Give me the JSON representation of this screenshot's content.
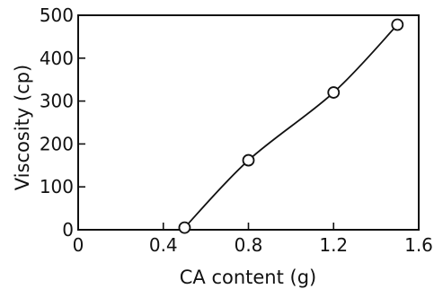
{
  "chart_data": {
    "type": "line",
    "title": "",
    "xlabel": "CA content (g)",
    "ylabel": "Viscosity (cp)",
    "xlim": [
      0,
      1.6
    ],
    "ylim": [
      0,
      500
    ],
    "xticks": [
      0,
      0.4,
      0.8,
      1.2,
      1.6
    ],
    "xtick_labels": [
      "0",
      "0.4",
      "0.8",
      "1.2",
      "1.6"
    ],
    "yticks": [
      0,
      100,
      200,
      300,
      400,
      500
    ],
    "ytick_labels": [
      "0",
      "100",
      "200",
      "300",
      "400",
      "500"
    ],
    "grid": false,
    "marker": "open-circle",
    "series": [
      {
        "x": [
          0.5,
          0.8,
          1.2,
          1.5
        ],
        "y": [
          5,
          162,
          320,
          478
        ]
      }
    ]
  }
}
